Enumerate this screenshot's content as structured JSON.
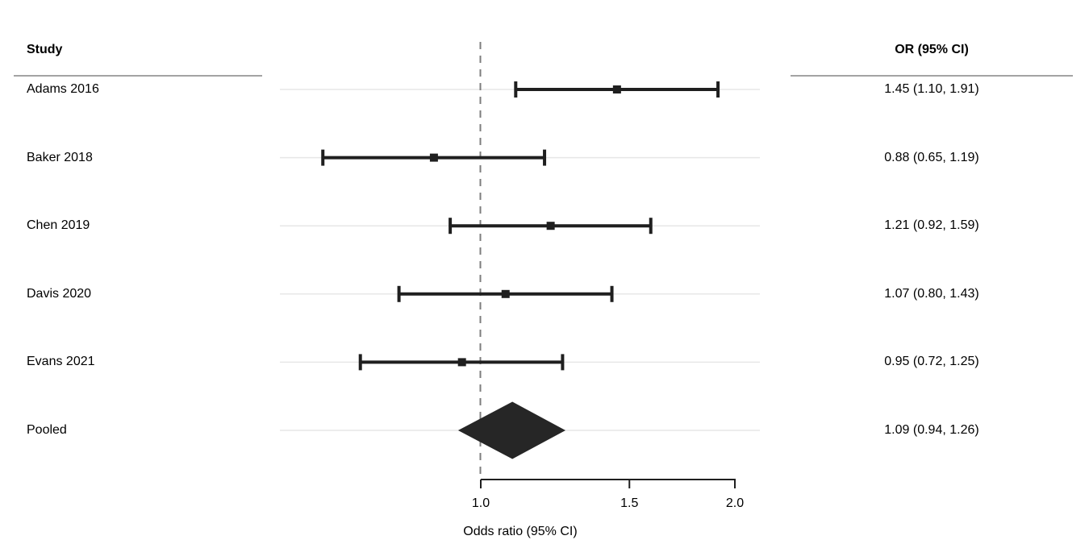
{
  "headers": {
    "study": "Study",
    "or_ci": "OR (95% CI)"
  },
  "chart_data": {
    "type": "forest",
    "title": "",
    "xlabel": "Odds ratio (95% CI)",
    "x_scale": "log",
    "x_axis_range": [
      1.0,
      2.0
    ],
    "x_ticks": [
      {
        "value": 1.0,
        "label": "1.0"
      },
      {
        "value": 1.5,
        "label": "1.5"
      },
      {
        "value": 2.0,
        "label": "2.0"
      }
    ],
    "reference_line": 1.0,
    "rows": [
      {
        "kind": "study",
        "label": "Adams 2016",
        "or": 1.45,
        "ci_low": 1.1,
        "ci_high": 1.91,
        "or_text": "1.45 (1.10, 1.91)"
      },
      {
        "kind": "study",
        "label": "Baker 2018",
        "or": 0.88,
        "ci_low": 0.65,
        "ci_high": 1.19,
        "or_text": "0.88 (0.65, 1.19)"
      },
      {
        "kind": "study",
        "label": "Chen 2019",
        "or": 1.21,
        "ci_low": 0.92,
        "ci_high": 1.59,
        "or_text": "1.21 (0.92, 1.59)"
      },
      {
        "kind": "study",
        "label": "Davis 2020",
        "or": 1.07,
        "ci_low": 0.8,
        "ci_high": 1.43,
        "or_text": "1.07 (0.80, 1.43)"
      },
      {
        "kind": "study",
        "label": "Evans 2021",
        "or": 0.95,
        "ci_low": 0.72,
        "ci_high": 1.25,
        "or_text": "0.95 (0.72, 1.25)"
      },
      {
        "kind": "pooled",
        "label": "Pooled",
        "or": 1.09,
        "ci_low": 0.94,
        "ci_high": 1.26,
        "or_text": "1.09 (0.94, 1.26)"
      }
    ],
    "grid": "light horizontal row lines",
    "legend": "none"
  },
  "colors": {
    "marker": "#1f1f1f",
    "diamond": "#262626",
    "axis": "#1f1f1f",
    "row_line": "#e7e7e7",
    "reference_line": "#7d7d7d",
    "header_rule": "#a3a3a3",
    "text": "#000000",
    "background": "#ffffff"
  }
}
